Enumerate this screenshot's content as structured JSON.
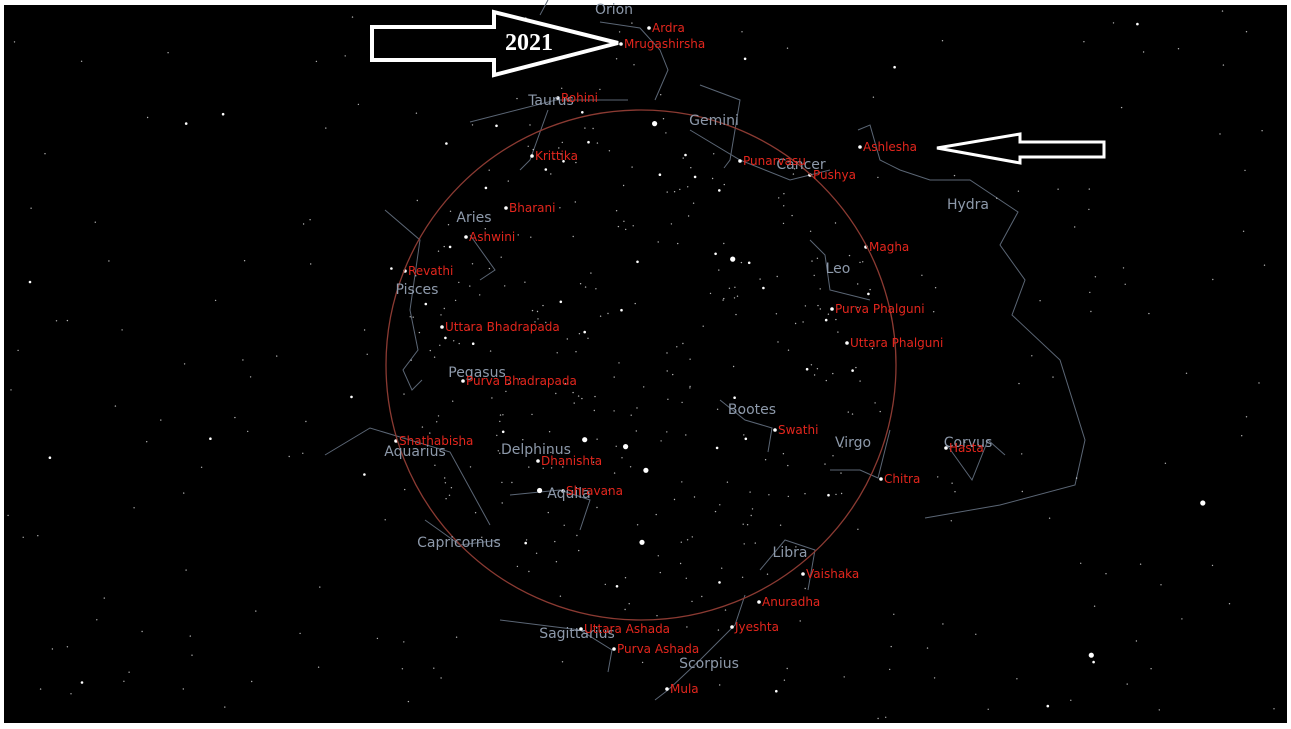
{
  "annotation": "2021",
  "constellations": [
    "Orion",
    "Taurus",
    "Gemini",
    "Cancer",
    "Hydra",
    "Aries",
    "Leo",
    "Pisces",
    "Pegasus",
    "Bootes",
    "Virgo",
    "Corvus",
    "Aquarius",
    "Delphinus",
    "Aquila",
    "Capricornus",
    "Libra",
    "Sagittarius",
    "Scorpius"
  ],
  "nakshatras": [
    "Ardra",
    "Mrugashirsha",
    "Rohini",
    "Krittika",
    "Punarvasu",
    "Pushya",
    "Ashlesha",
    "Bharani",
    "Ashwini",
    "Magha",
    "Revathi",
    "Purva Phalguni",
    "Uttara Bhadrapada",
    "Uttara Phalguni",
    "Purva Bhadrapada",
    "Swathi",
    "Shathabisha",
    "Hasta",
    "Dhanishta",
    "Chitra",
    "Shravana",
    "Vaishaka",
    "Anuradha",
    "Uttara Ashada",
    "Jyeshta",
    "Purva Ashada",
    "Mula"
  ]
}
